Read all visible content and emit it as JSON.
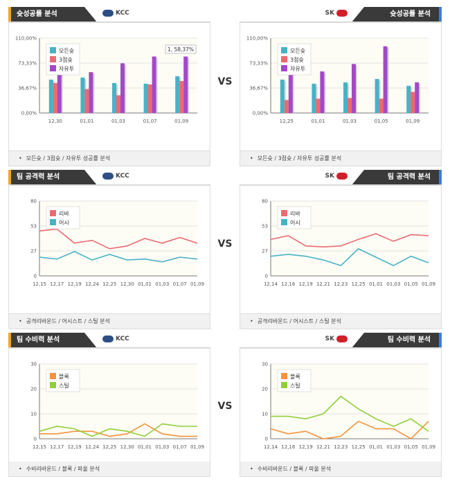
{
  "vs_label": "VS",
  "colors": {
    "blue": "#46b3c6",
    "red": "#ec6a6f",
    "purple": "#a349c9",
    "orange": "#f4923c",
    "green": "#8fd03a"
  },
  "sections": [
    {
      "id": "shoot",
      "left": {
        "title": "슛성공률 분석",
        "team": "KCC",
        "footer": "모든슛 / 3점슛 / 자유투 성공률 분석"
      },
      "right": {
        "title": "슛성공률 분석",
        "team": "SK",
        "footer": "모든슛 / 3점슛 / 자유투 성공률 분석"
      }
    },
    {
      "id": "attack",
      "left": {
        "title": "팀 공격력 분석",
        "team": "KCC",
        "footer": "공격리바운드 / 어시스트 / 스틸 분석"
      },
      "right": {
        "title": "팀 공격력 분석",
        "team": "SK",
        "footer": "공격리바운드 / 어시스트 / 스틸 분석"
      }
    },
    {
      "id": "defense",
      "left": {
        "title": "팀 수비력 분석",
        "team": "KCC",
        "footer": "수비리바운드 / 블록 / 파울 분석"
      },
      "right": {
        "title": "팀 수비력 분석",
        "team": "SK",
        "footer": "수비리바운드 / 블록 / 파울 분석"
      }
    }
  ],
  "chart_data": [
    {
      "id": "kcc-shoot",
      "type": "bar",
      "categories": [
        "12,30",
        "01,01",
        "01,03",
        "01,07",
        "01,09"
      ],
      "yticks": [
        "0,00%",
        "36,67%",
        "73,33%",
        "110,00%"
      ],
      "ylim": [
        0,
        110
      ],
      "annotation": "1, 58,37%",
      "series": [
        {
          "name": "모든슛",
          "color": "blue",
          "values": [
            49,
            52,
            44,
            43,
            54
          ]
        },
        {
          "name": "3점슛",
          "color": "red",
          "values": [
            44,
            35,
            26,
            42,
            47
          ]
        },
        {
          "name": "자유투",
          "color": "purple",
          "values": [
            64,
            60,
            73,
            83,
            83
          ]
        }
      ]
    },
    {
      "id": "sk-shoot",
      "type": "bar",
      "categories": [
        "12,25",
        "01,01",
        "01,03",
        "01,05",
        "01,09"
      ],
      "yticks": [
        "0,00%",
        "36,67%",
        "73,33%",
        "110,00%"
      ],
      "ylim": [
        0,
        110
      ],
      "annotation": "",
      "series": [
        {
          "name": "모든슛",
          "color": "blue",
          "values": [
            49,
            43,
            45,
            50,
            40
          ]
        },
        {
          "name": "3점슛",
          "color": "red",
          "values": [
            19,
            21,
            22,
            21,
            31
          ]
        },
        {
          "name": "자유투",
          "color": "purple",
          "values": [
            65,
            61,
            72,
            98,
            45
          ]
        }
      ]
    },
    {
      "id": "kcc-attack",
      "type": "line",
      "categories": [
        "12,15",
        "12,17",
        "12,19",
        "12,24",
        "12,25",
        "12,30",
        "01,01",
        "01,03",
        "01,07",
        "01,09"
      ],
      "yticks": [
        "0",
        "27",
        "53",
        "80"
      ],
      "ylim": [
        0,
        80
      ],
      "series": [
        {
          "name": "리바",
          "color": "red",
          "values": [
            48,
            50,
            35,
            38,
            29,
            32,
            40,
            35,
            41,
            35
          ]
        },
        {
          "name": "어시",
          "color": "blue",
          "values": [
            20,
            18,
            26,
            17,
            23,
            17,
            18,
            15,
            20,
            18
          ]
        }
      ]
    },
    {
      "id": "sk-attack",
      "type": "line",
      "categories": [
        "12,14",
        "12,16",
        "12,19",
        "12,21",
        "12,23",
        "12,25",
        "01,01",
        "01,03",
        "01,05",
        "01,09"
      ],
      "yticks": [
        "0",
        "27",
        "53",
        "80"
      ],
      "ylim": [
        0,
        80
      ],
      "series": [
        {
          "name": "리바",
          "color": "red",
          "values": [
            39,
            43,
            32,
            31,
            32,
            39,
            45,
            37,
            44,
            43
          ]
        },
        {
          "name": "어시",
          "color": "blue",
          "values": [
            21,
            23,
            21,
            17,
            11,
            29,
            20,
            11,
            21,
            14
          ]
        }
      ]
    },
    {
      "id": "kcc-defense",
      "type": "line",
      "categories": [
        "12,15",
        "12,17",
        "12,19",
        "12,24",
        "12,25",
        "12,30",
        "01,01",
        "01,03",
        "01,07",
        "01,09"
      ],
      "yticks": [
        "0",
        "10",
        "20",
        "30"
      ],
      "ylim": [
        0,
        30
      ],
      "series": [
        {
          "name": "블록",
          "color": "orange",
          "values": [
            2,
            2,
            3,
            3,
            1,
            2,
            6,
            2,
            1,
            1
          ]
        },
        {
          "name": "스틸",
          "color": "green",
          "values": [
            3,
            5,
            4,
            1,
            4,
            3,
            1,
            6,
            5,
            5
          ]
        }
      ]
    },
    {
      "id": "sk-defense",
      "type": "line",
      "categories": [
        "12,14",
        "12,16",
        "12,19",
        "12,21",
        "12,23",
        "12,25",
        "01,01",
        "01,03",
        "01,05",
        "01,09"
      ],
      "yticks": [
        "0",
        "10",
        "20",
        "30"
      ],
      "ylim": [
        0,
        30
      ],
      "series": [
        {
          "name": "블록",
          "color": "orange",
          "values": [
            4,
            2,
            3,
            0,
            1,
            7,
            4,
            4,
            0,
            7
          ]
        },
        {
          "name": "스틸",
          "color": "green",
          "values": [
            9,
            9,
            8,
            10,
            17,
            12,
            8,
            5,
            8,
            3
          ]
        }
      ]
    }
  ]
}
